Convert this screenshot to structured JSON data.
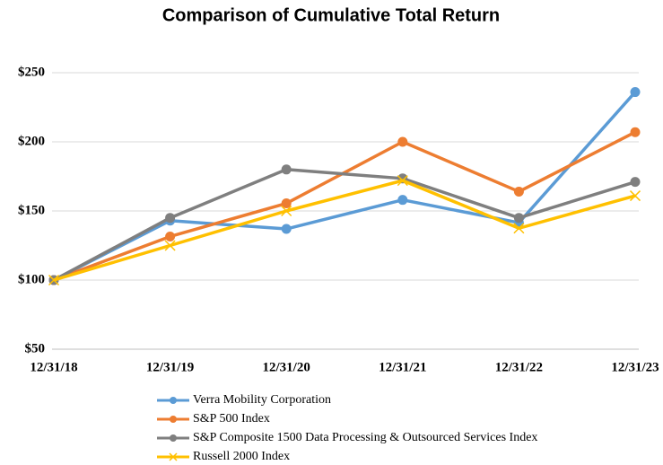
{
  "chart_data": {
    "type": "line",
    "title": "Comparison of Cumulative Total Return",
    "categories": [
      "12/31/18",
      "12/31/19",
      "12/31/20",
      "12/31/21",
      "12/31/22",
      "12/31/23"
    ],
    "series": [
      {
        "name": "Verra Mobility Corporation",
        "color": "#5b9bd5",
        "marker": "circle",
        "values": [
          100,
          143,
          137,
          158,
          141.5,
          236
        ]
      },
      {
        "name": "S&P 500 Index",
        "color": "#ed7d31",
        "marker": "circle",
        "values": [
          100,
          131.5,
          155.5,
          200,
          164,
          207
        ]
      },
      {
        "name": "S&P Composite 1500 Data Processing & Outsourced Services Index",
        "color": "#7f7f7f",
        "marker": "circle",
        "values": [
          100,
          145,
          180,
          173.5,
          145,
          171
        ]
      },
      {
        "name": "Russell 2000 Index",
        "color": "#ffc000",
        "marker": "x",
        "values": [
          100,
          125,
          150,
          172,
          137.5,
          161
        ]
      }
    ],
    "ylim": [
      50,
      250
    ],
    "yticks": [
      {
        "value": 50,
        "label": "$50"
      },
      {
        "value": 100,
        "label": "$100"
      },
      {
        "value": 150,
        "label": "$150"
      },
      {
        "value": 200,
        "label": "$200"
      },
      {
        "value": 250,
        "label": "$250"
      }
    ],
    "grid": true,
    "legend": "bottom"
  }
}
